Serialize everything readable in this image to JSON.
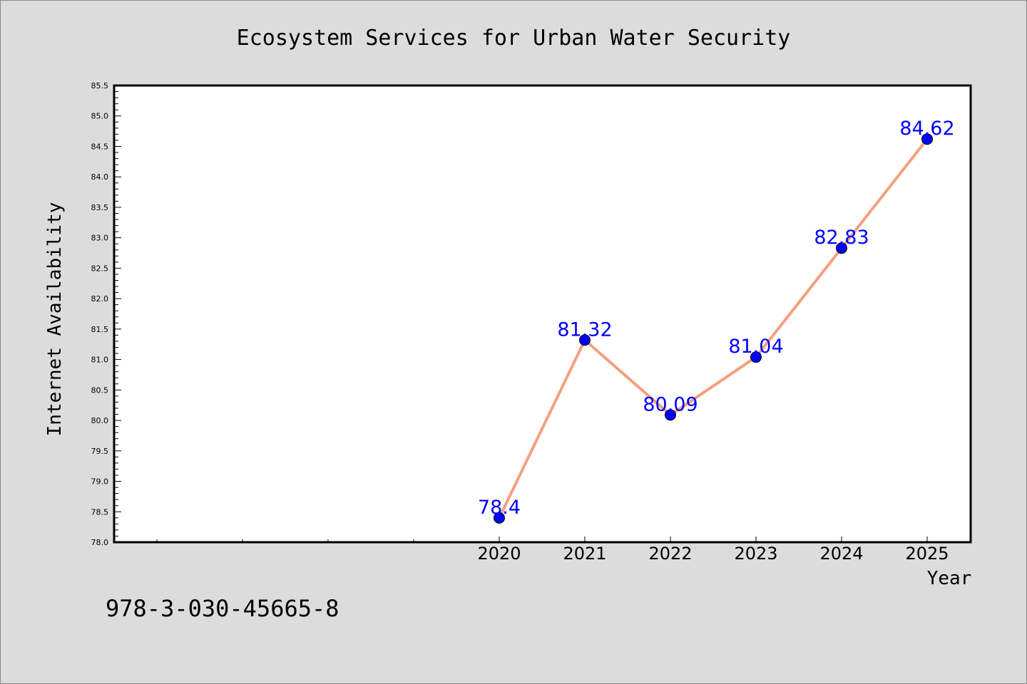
{
  "chart_data": {
    "type": "line",
    "title": "Ecosystem Services for Urban Water Security",
    "xlabel": "Year",
    "ylabel": "Internet Availability",
    "x": [
      "2020",
      "2021",
      "2022",
      "2023",
      "2024",
      "2025"
    ],
    "series": [
      {
        "values": [
          78.4,
          81.32,
          80.09,
          81.04,
          82.83,
          84.62
        ]
      }
    ],
    "data_labels": [
      "78.4",
      "81.32",
      "80.09",
      "81.04",
      "82.83",
      "84.62"
    ],
    "ylim": [
      78.0,
      85.5
    ],
    "yticks": [
      "78.0",
      "78.5",
      "79.0",
      "79.5",
      "80.0",
      "80.5",
      "81.0",
      "81.5",
      "82.0",
      "82.5",
      "83.0",
      "83.5",
      "84.0",
      "84.5",
      "85.0",
      "85.5"
    ],
    "grid": false,
    "line_color": "#f4a07f",
    "marker_color": "#0000ff",
    "label_color": "#0000ff",
    "background_color": "#dcdcdc",
    "plot_background_color": "#ffffff"
  },
  "footer_text": "978-3-030-45665-8"
}
